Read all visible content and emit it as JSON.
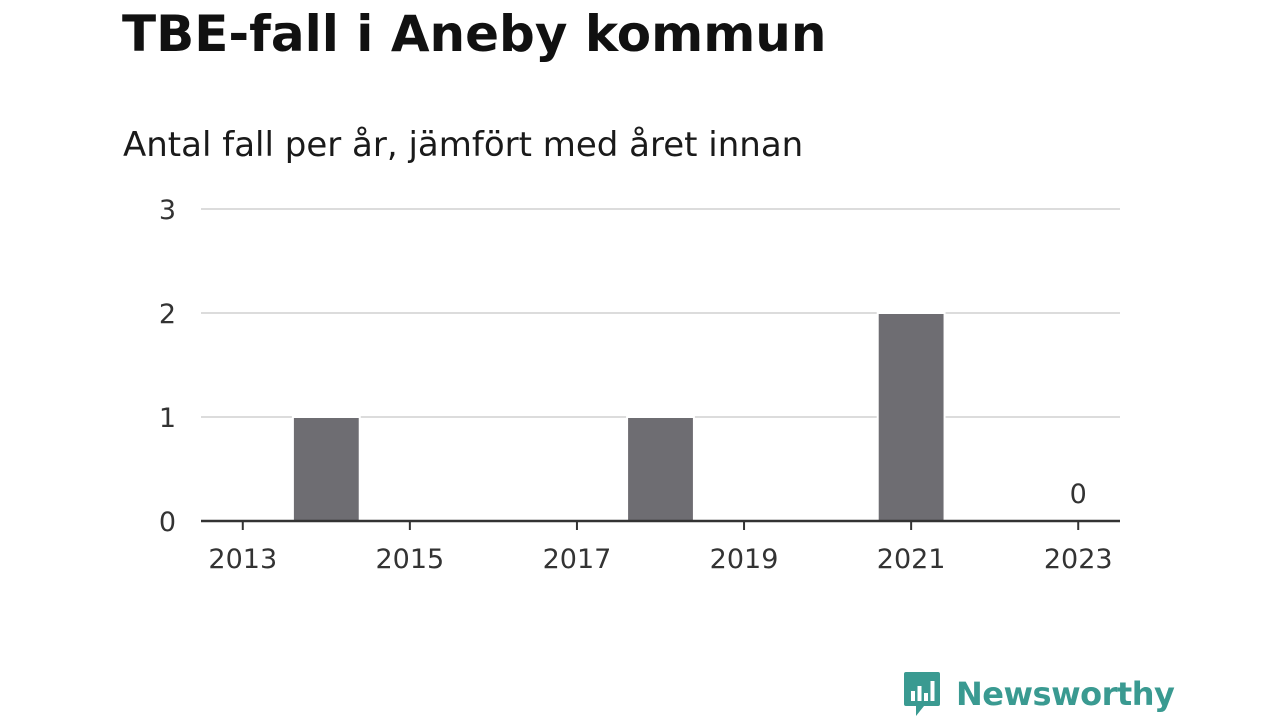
{
  "title": "TBE-fall i Aneby kommun",
  "subtitle": "Antal fall per år, jämfört med året innan",
  "chart_data": {
    "type": "bar",
    "x": [
      2013,
      2014,
      2015,
      2016,
      2017,
      2018,
      2019,
      2020,
      2021,
      2022,
      2023
    ],
    "values": [
      0,
      1,
      0,
      0,
      0,
      1,
      0,
      0,
      2,
      0,
      0
    ],
    "x_ticks": [
      "2013",
      "2015",
      "2017",
      "2019",
      "2021",
      "2023"
    ],
    "y_ticks": [
      "0",
      "1",
      "2",
      "3"
    ],
    "ylim": [
      0,
      3
    ],
    "grid": true,
    "annotations": [
      {
        "x": 2023,
        "text": "0"
      }
    ],
    "colors": {
      "bar": "#6e6d72",
      "grid": "#dcdcdc",
      "axis": "#333333"
    }
  },
  "brand": {
    "name": "Newsworthy",
    "logo_icon": "newsworthy-bar-chart-icon",
    "color": "#3a9a91"
  }
}
